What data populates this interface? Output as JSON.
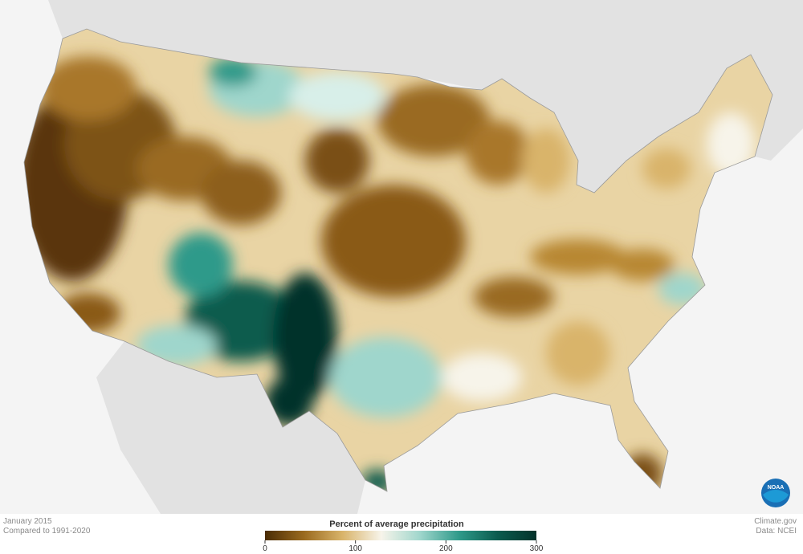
{
  "caption": {
    "date": "January 2015",
    "baseline": "Compared to 1991-2020"
  },
  "legend": {
    "title": "Percent of average precipitation",
    "range": [
      0,
      300
    ],
    "ticks": [
      0,
      100,
      200,
      300
    ],
    "colors": [
      "#4a2c05",
      "#9a6a1e",
      "#d9b46a",
      "#f7f4ea",
      "#9fd6cc",
      "#2f9a8a",
      "#0b5b4e",
      "#03332b"
    ]
  },
  "credits": {
    "site": "Climate.gov",
    "data": "Data: NCEI"
  },
  "logo": "NOAA"
}
